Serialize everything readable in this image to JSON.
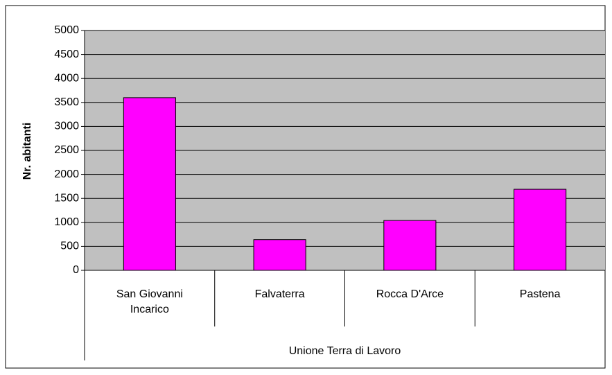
{
  "chart_data": {
    "type": "bar",
    "y_axis_label": "Nr. abitanti",
    "group_label": "Unione Terra di Lavoro",
    "categories": [
      "San Giovanni Incarico",
      "Falvaterra",
      "Rocca D'Arce",
      "Pastena"
    ],
    "values": [
      3600,
      640,
      1040,
      1690
    ],
    "color": "#ff00ff",
    "plot_background": "#c0c0c0",
    "ylim": [
      0,
      5000
    ],
    "yticks": [
      0,
      500,
      1000,
      1500,
      2000,
      2500,
      3000,
      3500,
      4000,
      4500,
      5000
    ],
    "grid": true
  }
}
